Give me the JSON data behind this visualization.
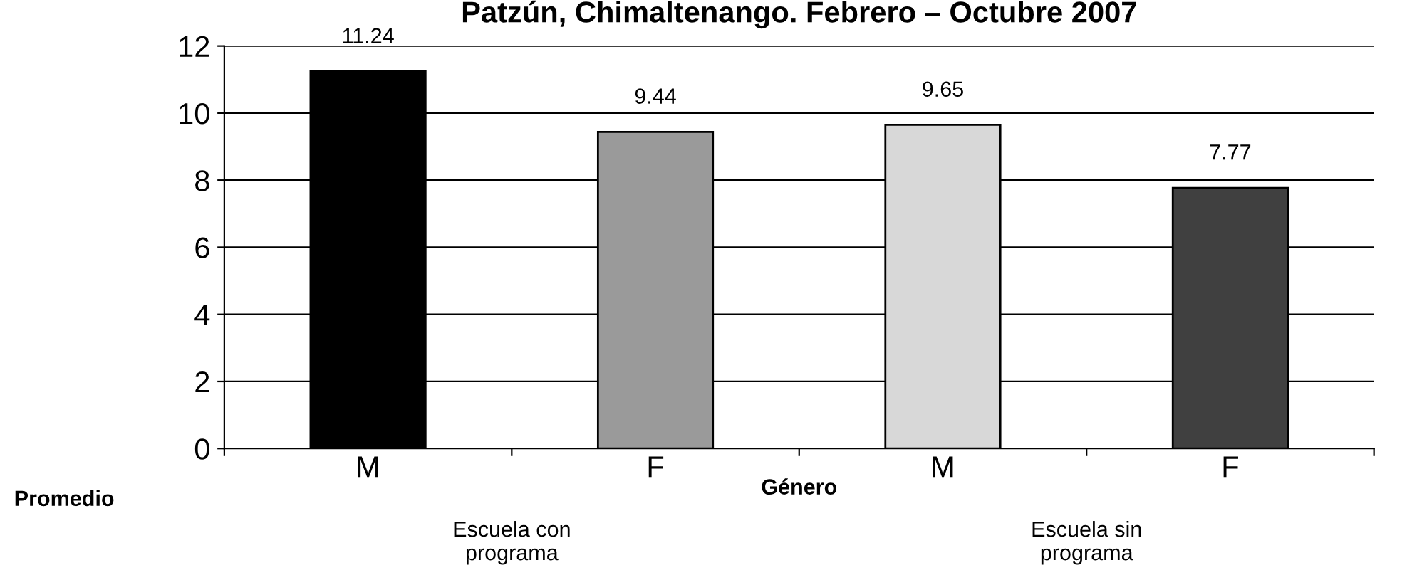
{
  "chart_data": {
    "type": "bar",
    "title": "Patzún, Chimaltenango. Febrero – Octubre 2007",
    "xlabel": "Género",
    "ylabel": "Promedio",
    "categories": [
      "M",
      "F",
      "M",
      "F"
    ],
    "values": [
      11.24,
      9.44,
      9.65,
      7.77
    ],
    "colors": [
      "#000000",
      "#9a9a9a",
      "#d8d8d8",
      "#404040"
    ],
    "ylim": [
      0,
      12
    ],
    "yticks": [
      0,
      2,
      4,
      6,
      8,
      10,
      12
    ],
    "grid": "y",
    "data_labels": true,
    "annotations": [
      "Escuela con programa",
      "Escuela sin programa"
    ]
  }
}
